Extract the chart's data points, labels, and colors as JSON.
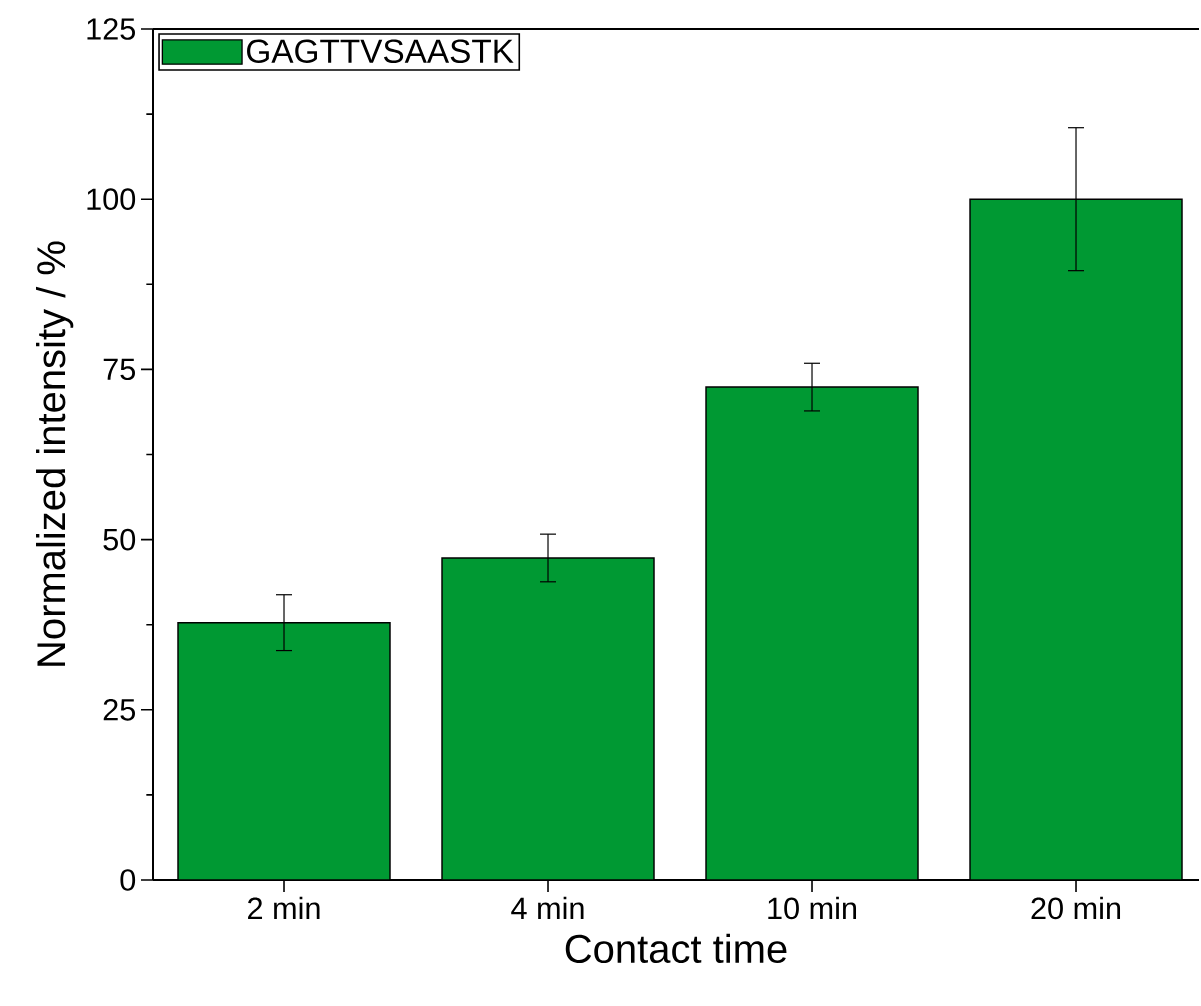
{
  "chart_data": {
    "type": "bar",
    "xlabel": "Contact time",
    "ylabel": "Normalized intensity / %",
    "categories": [
      "2 min",
      "4 min",
      "10 min",
      "20 min"
    ],
    "series": [
      {
        "name": "GAGTTVSAASTK",
        "color": "#009933",
        "values": [
          37.8,
          47.3,
          72.4,
          100
        ],
        "errors": [
          4.1,
          3.5,
          3.5,
          10.5
        ]
      }
    ],
    "ylim": [
      0,
      125
    ],
    "yticks": [
      0,
      25,
      50,
      75,
      100,
      125
    ],
    "grid": false,
    "legend": "top left"
  }
}
